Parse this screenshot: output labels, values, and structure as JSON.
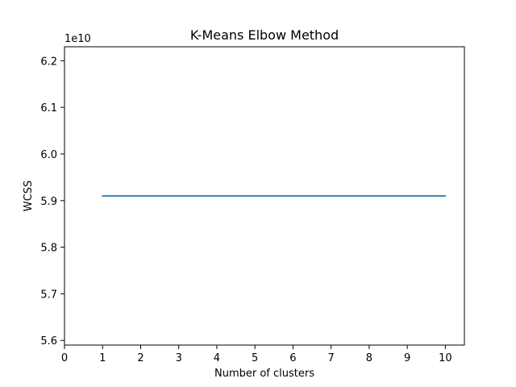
{
  "chart_data": {
    "type": "line",
    "title": "K-Means Elbow Method",
    "xlabel": "Number of clusters",
    "ylabel": "WCSS",
    "y_scale_label": "1e10",
    "x_ticks": [
      0,
      1,
      2,
      3,
      4,
      5,
      6,
      7,
      8,
      9,
      10
    ],
    "y_ticks": [
      "5.6",
      "5.7",
      "5.8",
      "5.9",
      "6.0",
      "6.1",
      "6.2"
    ],
    "xlim": [
      0,
      10.5
    ],
    "ylim": [
      5.59,
      6.23
    ],
    "grid": false,
    "series": [
      {
        "color": "#1f77b4",
        "x": [
          1,
          2,
          3,
          4,
          5,
          6,
          7,
          8,
          9,
          10
        ],
        "y": [
          5.91,
          5.91,
          5.91,
          5.91,
          5.91,
          5.91,
          5.91,
          5.91,
          5.91,
          5.91
        ]
      }
    ]
  }
}
